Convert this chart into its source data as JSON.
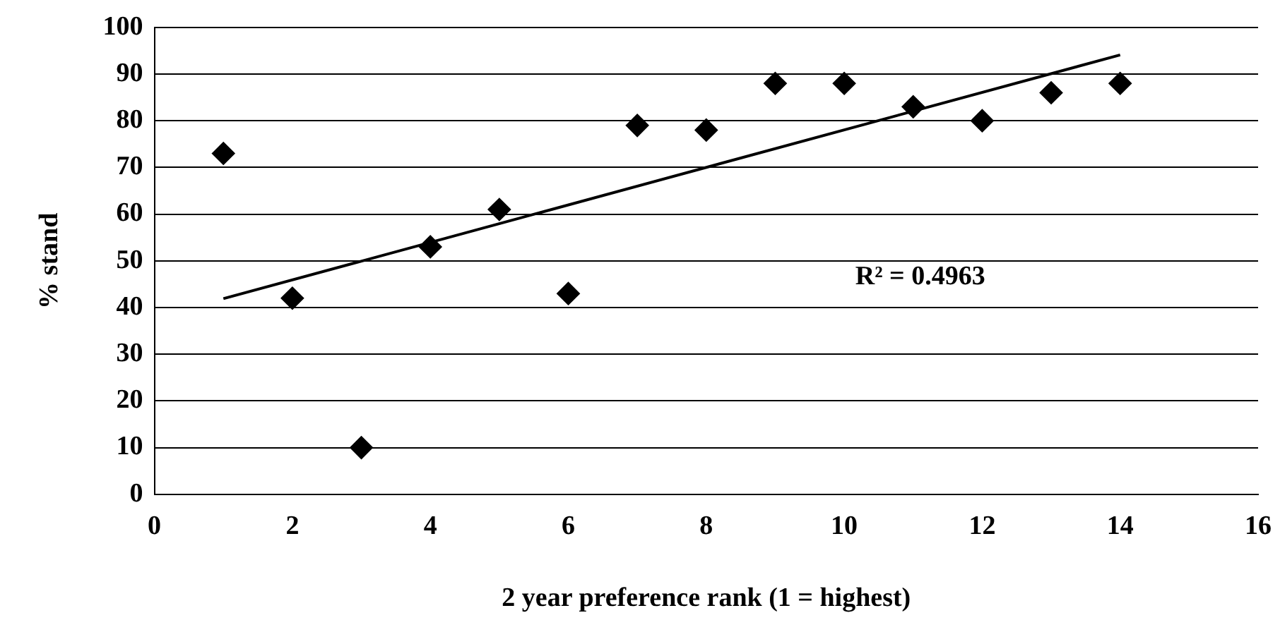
{
  "chart_data": {
    "type": "scatter",
    "xlabel": "2 year preference rank (1 = highest)",
    "ylabel": "% stand",
    "x": [
      1,
      2,
      3,
      4,
      5,
      6,
      7,
      8,
      9,
      10,
      11,
      12,
      13,
      14
    ],
    "series": [
      {
        "color": "#000000",
        "marker": "diamond",
        "values": [
          73,
          42,
          10,
          53,
          61,
          43,
          79,
          78,
          88,
          88,
          83,
          80,
          86,
          88
        ]
      },
      {
        "type": "line",
        "color": "#000000",
        "marker": "none",
        "x": [
          1,
          14
        ],
        "values": [
          41.9,
          94.1
        ]
      }
    ],
    "xlim": [
      0,
      16
    ],
    "xticks": [
      0,
      2,
      4,
      6,
      8,
      10,
      12,
      14,
      16
    ],
    "ylim": [
      0,
      100
    ],
    "yticks": [
      0,
      10,
      20,
      30,
      40,
      50,
      60,
      70,
      80,
      90,
      100
    ],
    "grid": "y",
    "legend": false,
    "annotations": [
      "R² = 0.4963"
    ]
  }
}
